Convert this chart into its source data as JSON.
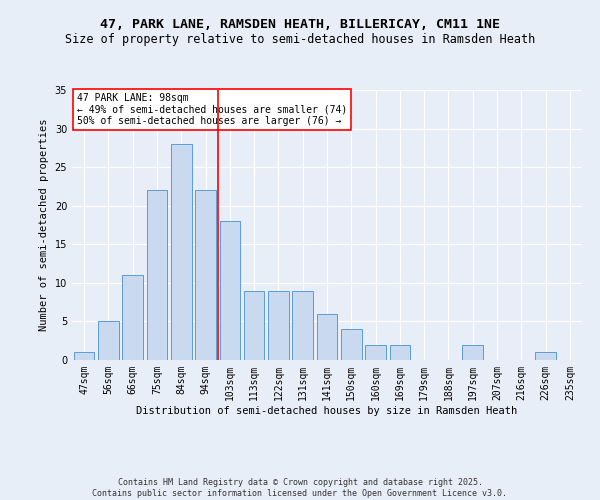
{
  "title": "47, PARK LANE, RAMSDEN HEATH, BILLERICAY, CM11 1NE",
  "subtitle": "Size of property relative to semi-detached houses in Ramsden Heath",
  "xlabel": "Distribution of semi-detached houses by size in Ramsden Heath",
  "ylabel": "Number of semi-detached properties",
  "bins": [
    "47sqm",
    "56sqm",
    "66sqm",
    "75sqm",
    "84sqm",
    "94sqm",
    "103sqm",
    "113sqm",
    "122sqm",
    "131sqm",
    "141sqm",
    "150sqm",
    "160sqm",
    "169sqm",
    "179sqm",
    "188sqm",
    "197sqm",
    "207sqm",
    "216sqm",
    "226sqm",
    "235sqm"
  ],
  "counts": [
    1,
    5,
    11,
    22,
    28,
    22,
    18,
    9,
    9,
    9,
    6,
    4,
    2,
    2,
    0,
    0,
    2,
    0,
    0,
    1,
    0
  ],
  "bar_color": "#c9d9f0",
  "bar_edge_color": "#5b9bd5",
  "vline_x_index": 5,
  "vline_color": "red",
  "annotation_text": "47 PARK LANE: 98sqm\n← 49% of semi-detached houses are smaller (74)\n50% of semi-detached houses are larger (76) →",
  "annotation_box_color": "white",
  "annotation_box_edge_color": "red",
  "ylim": [
    0,
    35
  ],
  "yticks": [
    0,
    5,
    10,
    15,
    20,
    25,
    30,
    35
  ],
  "footer": "Contains HM Land Registry data © Crown copyright and database right 2025.\nContains public sector information licensed under the Open Government Licence v3.0.",
  "background_color": "#e8eef8",
  "grid_color": "white",
  "title_fontsize": 9.5,
  "subtitle_fontsize": 8.5,
  "axis_label_fontsize": 7.5,
  "tick_fontsize": 7,
  "annotation_fontsize": 7,
  "footer_fontsize": 6
}
